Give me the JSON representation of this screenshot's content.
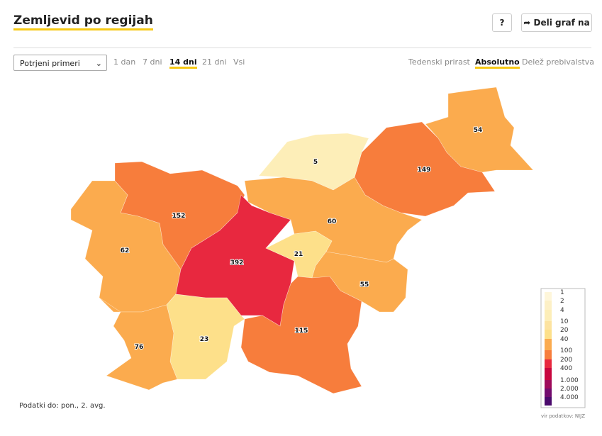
{
  "header": {
    "title": "Zemljevid po regijah",
    "help": "?",
    "share": "Deli graf na"
  },
  "controls": {
    "select": "Potrjeni primeri",
    "periods": [
      "1 dan",
      "7 dni",
      "14 dni",
      "21 dni",
      "Vsi"
    ],
    "active_period": 2,
    "modes": [
      "Tedenski prirast",
      "Absolutno",
      "Delež prebivalstva"
    ],
    "active_mode": 1
  },
  "chart_data": {
    "type": "choropleth",
    "values": [
      54,
      149,
      5,
      60,
      152,
      62,
      392,
      21,
      55,
      115,
      23,
      76
    ],
    "legend_ticks": [
      1,
      2,
      4,
      10,
      20,
      40,
      100,
      200,
      400,
      {
        "value": 1000,
        "label": "1.000"
      },
      {
        "value": 2000,
        "label": "2.000"
      },
      {
        "value": 4000,
        "label": "4.000"
      }
    ],
    "legend_colors": [
      "#fef6da",
      "#fdf0c6",
      "#fdeeb8",
      "#fde3a0",
      "#fde08a",
      "#fbab4e",
      "#f77d3c",
      "#e8283f",
      "#c8063e",
      "#9e0a5a",
      "#720b6e",
      "#4a0a6c"
    ]
  },
  "footer": {
    "note": "Podatki do: pon., 2. avg.",
    "source": "vir podatkov: NIJZ"
  }
}
